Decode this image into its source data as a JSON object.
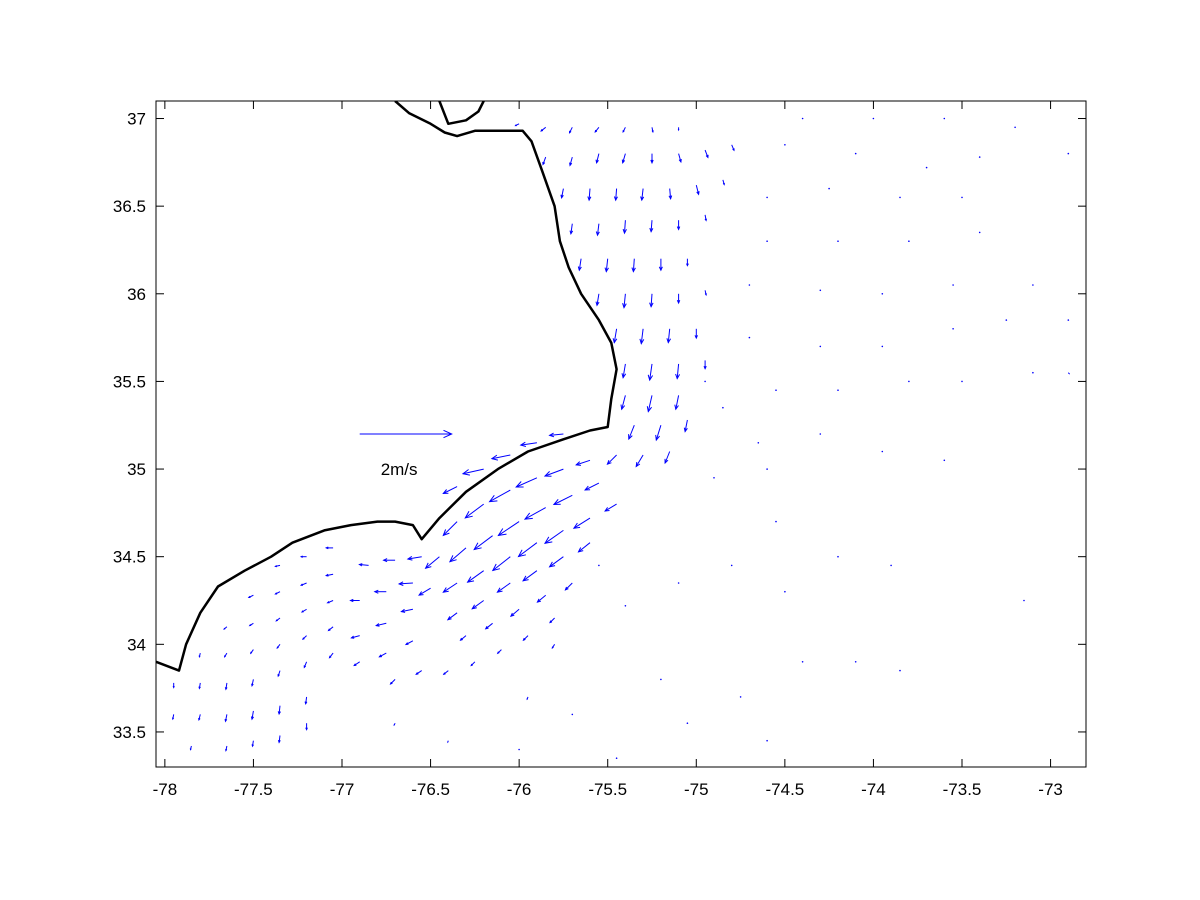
{
  "chart_data": {
    "type": "quiver",
    "title": "",
    "xlabel": "",
    "ylabel": "",
    "xlim": [
      -78.05,
      -72.8
    ],
    "ylim": [
      33.3,
      37.1
    ],
    "grid": false,
    "legend": "none",
    "x_ticks": [
      -78,
      -77.5,
      -77,
      -76.5,
      -76,
      -75.5,
      -75,
      -74.5,
      -74,
      -73.5,
      -73
    ],
    "y_ticks": [
      33.5,
      34,
      34.5,
      35,
      35.5,
      36,
      36.5,
      37
    ],
    "x_tick_labels": [
      "-78",
      "-77.5",
      "-77",
      "-76.5",
      "-76",
      "-75.5",
      "-75",
      "-74.5",
      "-74",
      "-73.5",
      "-73"
    ],
    "y_tick_labels": [
      "33.5",
      "34",
      "34.5",
      "35",
      "35.5",
      "36",
      "36.5",
      "37"
    ],
    "vector_color": "#0000ff",
    "coast_color": "#000000",
    "scale_arrow": {
      "label": "2m/s",
      "x": -76.9,
      "y": 35.2,
      "u": 2.0,
      "v": 0.0
    },
    "coastline": [
      [
        -78.05,
        33.9
      ],
      [
        -77.92,
        33.85
      ],
      [
        -77.88,
        34.0
      ],
      [
        -77.8,
        34.18
      ],
      [
        -77.7,
        34.33
      ],
      [
        -77.55,
        34.42
      ],
      [
        -77.4,
        34.5
      ],
      [
        -77.28,
        34.58
      ],
      [
        -77.1,
        34.65
      ],
      [
        -76.95,
        34.68
      ],
      [
        -76.8,
        34.7
      ],
      [
        -76.7,
        34.7
      ],
      [
        -76.6,
        34.68
      ],
      [
        -76.55,
        34.6
      ],
      [
        -76.45,
        34.72
      ],
      [
        -76.3,
        34.87
      ],
      [
        -76.12,
        35.0
      ],
      [
        -75.95,
        35.1
      ],
      [
        -75.75,
        35.17
      ],
      [
        -75.6,
        35.22
      ],
      [
        -75.5,
        35.24
      ],
      [
        -75.48,
        35.4
      ],
      [
        -75.45,
        35.57
      ],
      [
        -75.48,
        35.72
      ],
      [
        -75.55,
        35.85
      ],
      [
        -75.65,
        36.0
      ],
      [
        -75.72,
        36.15
      ],
      [
        -75.77,
        36.3
      ],
      [
        -75.8,
        36.5
      ],
      [
        -75.87,
        36.7
      ],
      [
        -75.93,
        36.87
      ],
      [
        -75.98,
        36.93
      ],
      [
        -76.1,
        36.93
      ],
      [
        -76.25,
        36.93
      ],
      [
        -76.35,
        36.9
      ],
      [
        -76.42,
        36.92
      ],
      [
        -76.5,
        36.97
      ],
      [
        -76.62,
        37.03
      ],
      [
        -76.7,
        37.1
      ]
    ],
    "coastline_inner": [
      [
        -76.45,
        37.1
      ],
      [
        -76.4,
        36.97
      ],
      [
        -76.3,
        36.99
      ],
      [
        -76.23,
        37.04
      ],
      [
        -76.2,
        37.1
      ]
    ],
    "vectors": [
      [
        -76.0,
        36.97,
        -0.08,
        -0.04
      ],
      [
        -75.85,
        36.95,
        -0.1,
        -0.08
      ],
      [
        -75.7,
        36.95,
        -0.06,
        -0.12
      ],
      [
        -75.55,
        36.95,
        -0.08,
        -0.1
      ],
      [
        -75.4,
        36.95,
        -0.05,
        -0.1
      ],
      [
        -75.25,
        36.95,
        0.02,
        -0.1
      ],
      [
        -75.1,
        36.95,
        0.0,
        -0.06
      ],
      [
        -75.85,
        36.78,
        -0.06,
        -0.16
      ],
      [
        -75.7,
        36.78,
        -0.05,
        -0.18
      ],
      [
        -75.55,
        36.8,
        -0.05,
        -0.2
      ],
      [
        -75.4,
        36.8,
        -0.06,
        -0.2
      ],
      [
        -75.25,
        36.8,
        0.0,
        -0.2
      ],
      [
        -75.1,
        36.8,
        0.05,
        -0.18
      ],
      [
        -74.95,
        36.82,
        0.06,
        -0.16
      ],
      [
        -74.8,
        36.85,
        0.05,
        -0.12
      ],
      [
        -75.75,
        36.6,
        -0.04,
        -0.2
      ],
      [
        -75.6,
        36.6,
        -0.02,
        -0.25
      ],
      [
        -75.45,
        36.6,
        -0.02,
        -0.25
      ],
      [
        -75.3,
        36.6,
        -0.03,
        -0.25
      ],
      [
        -75.15,
        36.6,
        0.02,
        -0.22
      ],
      [
        -75.0,
        36.62,
        0.05,
        -0.2
      ],
      [
        -74.85,
        36.65,
        0.03,
        -0.1
      ],
      [
        -75.7,
        36.4,
        -0.03,
        -0.22
      ],
      [
        -75.55,
        36.4,
        -0.03,
        -0.25
      ],
      [
        -75.4,
        36.42,
        -0.02,
        -0.28
      ],
      [
        -75.25,
        36.42,
        -0.02,
        -0.25
      ],
      [
        -75.1,
        36.42,
        0.0,
        -0.2
      ],
      [
        -74.95,
        36.45,
        0.02,
        -0.12
      ],
      [
        -75.65,
        36.2,
        -0.04,
        -0.25
      ],
      [
        -75.5,
        36.2,
        -0.03,
        -0.28
      ],
      [
        -75.35,
        36.2,
        -0.02,
        -0.28
      ],
      [
        -75.2,
        36.2,
        0.0,
        -0.25
      ],
      [
        -75.05,
        36.2,
        0.0,
        -0.15
      ],
      [
        -75.55,
        36.0,
        -0.04,
        -0.25
      ],
      [
        -75.4,
        36.0,
        -0.03,
        -0.3
      ],
      [
        -75.25,
        36.0,
        -0.02,
        -0.28
      ],
      [
        -75.1,
        36.0,
        0.0,
        -0.2
      ],
      [
        -74.95,
        36.02,
        0.02,
        -0.1
      ],
      [
        -75.45,
        35.8,
        -0.05,
        -0.3
      ],
      [
        -75.3,
        35.8,
        -0.04,
        -0.32
      ],
      [
        -75.15,
        35.8,
        -0.03,
        -0.3
      ],
      [
        -75.0,
        35.8,
        0.0,
        -0.2
      ],
      [
        -75.4,
        35.6,
        -0.05,
        -0.3
      ],
      [
        -75.25,
        35.6,
        -0.05,
        -0.35
      ],
      [
        -75.1,
        35.6,
        -0.03,
        -0.32
      ],
      [
        -74.95,
        35.62,
        0.0,
        -0.18
      ],
      [
        -75.4,
        35.42,
        -0.08,
        -0.3
      ],
      [
        -75.25,
        35.42,
        -0.08,
        -0.35
      ],
      [
        -75.1,
        35.42,
        -0.06,
        -0.3
      ],
      [
        -75.35,
        35.25,
        -0.12,
        -0.3
      ],
      [
        -75.2,
        35.25,
        -0.1,
        -0.32
      ],
      [
        -75.05,
        35.28,
        -0.05,
        -0.25
      ],
      [
        -75.45,
        35.08,
        -0.2,
        -0.2
      ],
      [
        -75.3,
        35.08,
        -0.15,
        -0.25
      ],
      [
        -75.15,
        35.1,
        -0.1,
        -0.25
      ],
      [
        -75.75,
        35.2,
        -0.3,
        -0.03
      ],
      [
        -75.9,
        35.15,
        -0.35,
        -0.05
      ],
      [
        -76.05,
        35.08,
        -0.4,
        -0.08
      ],
      [
        -76.2,
        35.0,
        -0.45,
        -0.1
      ],
      [
        -76.35,
        34.9,
        -0.3,
        -0.15
      ],
      [
        -75.6,
        35.05,
        -0.3,
        -0.1
      ],
      [
        -75.75,
        35.0,
        -0.4,
        -0.15
      ],
      [
        -75.9,
        34.95,
        -0.45,
        -0.2
      ],
      [
        -76.05,
        34.88,
        -0.45,
        -0.25
      ],
      [
        -76.2,
        34.8,
        -0.4,
        -0.3
      ],
      [
        -76.35,
        34.7,
        -0.3,
        -0.3
      ],
      [
        -75.55,
        34.92,
        -0.3,
        -0.15
      ],
      [
        -75.7,
        34.85,
        -0.4,
        -0.2
      ],
      [
        -75.85,
        34.78,
        -0.45,
        -0.25
      ],
      [
        -76.0,
        34.7,
        -0.45,
        -0.3
      ],
      [
        -76.15,
        34.62,
        -0.4,
        -0.3
      ],
      [
        -76.3,
        34.55,
        -0.35,
        -0.3
      ],
      [
        -76.45,
        34.5,
        -0.3,
        -0.25
      ],
      [
        -75.45,
        34.8,
        -0.25,
        -0.15
      ],
      [
        -75.6,
        34.72,
        -0.35,
        -0.22
      ],
      [
        -75.75,
        34.65,
        -0.4,
        -0.28
      ],
      [
        -75.9,
        34.58,
        -0.4,
        -0.3
      ],
      [
        -76.05,
        34.5,
        -0.38,
        -0.3
      ],
      [
        -76.2,
        34.42,
        -0.35,
        -0.25
      ],
      [
        -76.35,
        34.35,
        -0.3,
        -0.2
      ],
      [
        -76.5,
        34.32,
        -0.25,
        -0.15
      ],
      [
        -75.6,
        34.58,
        -0.25,
        -0.2
      ],
      [
        -75.75,
        34.5,
        -0.3,
        -0.22
      ],
      [
        -75.9,
        34.42,
        -0.3,
        -0.22
      ],
      [
        -76.05,
        34.35,
        -0.28,
        -0.2
      ],
      [
        -76.2,
        34.25,
        -0.25,
        -0.18
      ],
      [
        -76.35,
        34.18,
        -0.2,
        -0.15
      ],
      [
        -75.7,
        34.35,
        -0.15,
        -0.15
      ],
      [
        -75.85,
        34.28,
        -0.18,
        -0.15
      ],
      [
        -76.0,
        34.2,
        -0.18,
        -0.15
      ],
      [
        -76.15,
        34.12,
        -0.15,
        -0.12
      ],
      [
        -76.3,
        34.05,
        -0.12,
        -0.1
      ],
      [
        -75.8,
        34.15,
        -0.1,
        -0.1
      ],
      [
        -75.95,
        34.05,
        -0.1,
        -0.1
      ],
      [
        -76.1,
        33.97,
        -0.08,
        -0.08
      ],
      [
        -76.25,
        33.9,
        -0.08,
        -0.08
      ],
      [
        -76.4,
        33.85,
        -0.1,
        -0.08
      ],
      [
        -76.55,
        33.85,
        -0.12,
        -0.08
      ],
      [
        -76.7,
        33.8,
        -0.1,
        -0.1
      ],
      [
        -76.55,
        34.5,
        -0.3,
        -0.05
      ],
      [
        -76.7,
        34.48,
        -0.25,
        0.0
      ],
      [
        -76.85,
        34.45,
        -0.2,
        0.02
      ],
      [
        -76.6,
        34.35,
        -0.3,
        -0.02
      ],
      [
        -76.75,
        34.3,
        -0.25,
        0.0
      ],
      [
        -76.9,
        34.25,
        -0.2,
        0.0
      ],
      [
        -76.6,
        34.2,
        -0.25,
        -0.05
      ],
      [
        -76.75,
        34.12,
        -0.22,
        -0.05
      ],
      [
        -76.9,
        34.05,
        -0.18,
        -0.05
      ],
      [
        -76.6,
        34.02,
        -0.15,
        -0.08
      ],
      [
        -76.75,
        33.95,
        -0.15,
        -0.08
      ],
      [
        -76.9,
        33.9,
        -0.12,
        -0.08
      ],
      [
        -77.05,
        34.55,
        -0.15,
        0.0
      ],
      [
        -77.2,
        34.5,
        -0.12,
        0.0
      ],
      [
        -77.35,
        34.45,
        -0.1,
        -0.02
      ],
      [
        -77.05,
        34.4,
        -0.15,
        -0.03
      ],
      [
        -77.2,
        34.35,
        -0.12,
        -0.05
      ],
      [
        -77.35,
        34.3,
        -0.1,
        -0.05
      ],
      [
        -77.5,
        34.28,
        -0.1,
        -0.05
      ],
      [
        -77.05,
        34.25,
        -0.12,
        -0.05
      ],
      [
        -77.2,
        34.2,
        -0.1,
        -0.06
      ],
      [
        -77.35,
        34.15,
        -0.08,
        -0.06
      ],
      [
        -77.5,
        34.12,
        -0.08,
        -0.05
      ],
      [
        -77.65,
        34.1,
        -0.06,
        -0.05
      ],
      [
        -77.05,
        34.1,
        -0.1,
        -0.08
      ],
      [
        -77.2,
        34.05,
        -0.08,
        -0.08
      ],
      [
        -77.35,
        34.0,
        -0.06,
        -0.08
      ],
      [
        -77.5,
        33.97,
        -0.06,
        -0.08
      ],
      [
        -77.65,
        33.95,
        -0.05,
        -0.08
      ],
      [
        -77.8,
        33.95,
        -0.02,
        -0.08
      ],
      [
        -77.05,
        33.95,
        -0.08,
        -0.1
      ],
      [
        -77.2,
        33.9,
        -0.05,
        -0.12
      ],
      [
        -77.35,
        33.85,
        -0.04,
        -0.12
      ],
      [
        -77.5,
        33.8,
        -0.03,
        -0.14
      ],
      [
        -77.65,
        33.78,
        -0.02,
        -0.14
      ],
      [
        -77.8,
        33.78,
        -0.02,
        -0.12
      ],
      [
        -77.95,
        33.78,
        0.0,
        -0.1
      ],
      [
        -77.2,
        33.7,
        -0.02,
        -0.15
      ],
      [
        -77.35,
        33.65,
        -0.02,
        -0.18
      ],
      [
        -77.5,
        33.62,
        -0.03,
        -0.18
      ],
      [
        -77.65,
        33.6,
        -0.03,
        -0.15
      ],
      [
        -77.8,
        33.6,
        -0.03,
        -0.12
      ],
      [
        -77.95,
        33.6,
        -0.02,
        -0.1
      ],
      [
        -77.2,
        33.55,
        0.0,
        -0.14
      ],
      [
        -77.35,
        33.48,
        -0.02,
        -0.15
      ],
      [
        -77.5,
        33.45,
        -0.02,
        -0.12
      ],
      [
        -77.65,
        33.42,
        -0.02,
        -0.1
      ],
      [
        -77.85,
        33.42,
        -0.02,
        -0.08
      ],
      [
        -76.7,
        33.55,
        -0.02,
        -0.04
      ],
      [
        -76.4,
        33.45,
        -0.01,
        -0.03
      ],
      [
        -76.0,
        33.4,
        -0.01,
        -0.02
      ],
      [
        -75.7,
        33.6,
        0.0,
        -0.02
      ],
      [
        -75.45,
        33.35,
        0.0,
        -0.01
      ],
      [
        -75.2,
        33.8,
        0.0,
        -0.01
      ],
      [
        -74.75,
        33.7,
        0.0,
        0.0
      ],
      [
        -74.6,
        33.45,
        0.0,
        0.0
      ],
      [
        -74.4,
        33.9,
        0.0,
        0.0
      ],
      [
        -74.1,
        33.9,
        0.0,
        0.0
      ],
      [
        -73.85,
        33.85,
        0.0,
        0.0
      ],
      [
        -74.5,
        34.3,
        0.0,
        0.0
      ],
      [
        -74.2,
        34.5,
        0.0,
        0.0
      ],
      [
        -74.55,
        34.7,
        0.0,
        0.0
      ],
      [
        -74.8,
        34.45,
        0.0,
        0.0
      ],
      [
        -75.1,
        34.35,
        0.0,
        0.0
      ],
      [
        -75.4,
        34.22,
        -0.01,
        -0.01
      ],
      [
        -75.55,
        34.45,
        -0.01,
        -0.02
      ],
      [
        -74.9,
        34.95,
        0.0,
        0.0
      ],
      [
        -74.65,
        35.15,
        0.0,
        0.0
      ],
      [
        -74.3,
        35.2,
        0.0,
        0.0
      ],
      [
        -73.95,
        35.1,
        0.0,
        0.0
      ],
      [
        -73.6,
        35.05,
        0.0,
        0.0
      ],
      [
        -74.85,
        35.35,
        0.0,
        0.0
      ],
      [
        -74.55,
        35.45,
        0.0,
        0.0
      ],
      [
        -74.2,
        35.45,
        0.0,
        0.0
      ],
      [
        -73.8,
        35.5,
        0.0,
        0.0
      ],
      [
        -73.5,
        35.5,
        0.0,
        0.0
      ],
      [
        -73.1,
        35.55,
        0.0,
        0.0
      ],
      [
        -74.7,
        35.75,
        0.0,
        0.0
      ],
      [
        -74.3,
        35.7,
        0.0,
        0.0
      ],
      [
        -73.95,
        35.7,
        0.0,
        0.0
      ],
      [
        -73.55,
        35.8,
        0.0,
        0.0
      ],
      [
        -73.25,
        35.85,
        0.0,
        0.0
      ],
      [
        -72.9,
        35.85,
        0.0,
        0.0
      ],
      [
        -74.7,
        36.05,
        0.0,
        0.0
      ],
      [
        -74.3,
        36.02,
        0.0,
        0.0
      ],
      [
        -73.95,
        36.0,
        0.0,
        0.0
      ],
      [
        -73.55,
        36.05,
        0.0,
        0.0
      ],
      [
        -73.1,
        36.05,
        0.0,
        0.0
      ],
      [
        -74.6,
        36.3,
        0.0,
        0.0
      ],
      [
        -74.2,
        36.3,
        0.0,
        0.0
      ],
      [
        -73.8,
        36.3,
        0.0,
        0.0
      ],
      [
        -73.4,
        36.35,
        0.0,
        0.0
      ],
      [
        -74.6,
        36.55,
        0.0,
        0.0
      ],
      [
        -74.25,
        36.6,
        0.0,
        0.0
      ],
      [
        -73.85,
        36.55,
        0.0,
        0.0
      ],
      [
        -73.5,
        36.55,
        0.0,
        0.0
      ],
      [
        -74.5,
        36.85,
        0.0,
        0.0
      ],
      [
        -74.1,
        36.8,
        0.0,
        0.0
      ],
      [
        -73.7,
        36.72,
        0.0,
        0.0
      ],
      [
        -73.4,
        36.78,
        0.0,
        0.0
      ],
      [
        -72.9,
        36.8,
        0.0,
        0.0
      ],
      [
        -74.4,
        37.0,
        0.0,
        0.0
      ],
      [
        -74.0,
        37.0,
        0.0,
        0.0
      ],
      [
        -73.6,
        37.0,
        0.0,
        0.0
      ],
      [
        -73.2,
        36.95,
        0.0,
        0.0
      ],
      [
        -72.9,
        35.55,
        0.02,
        -0.02
      ],
      [
        -73.15,
        34.25,
        0.0,
        0.0
      ],
      [
        -73.9,
        34.45,
        0.0,
        0.0
      ],
      [
        -75.05,
        33.55,
        0.0,
        0.0
      ],
      [
        -74.95,
        35.5,
        0.0,
        -0.02
      ],
      [
        -74.6,
        35.0,
        0.0,
        0.0
      ],
      [
        -75.8,
        34.0,
        -0.05,
        -0.08
      ],
      [
        -75.95,
        33.7,
        -0.02,
        -0.05
      ]
    ]
  }
}
